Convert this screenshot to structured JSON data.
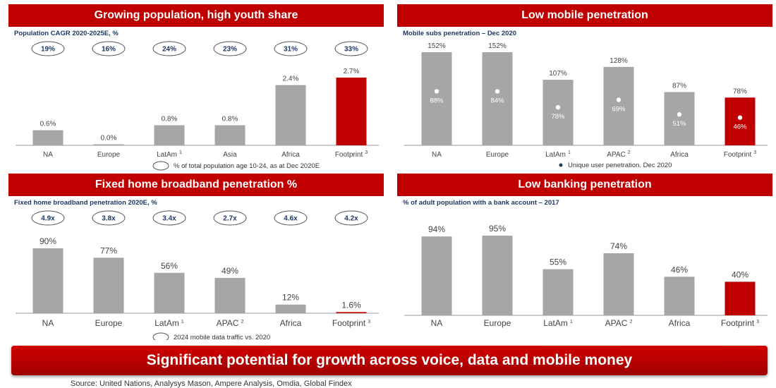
{
  "banner": "Significant potential for growth across voice, data and mobile money",
  "source": "Source: United Nations, Analysys Mason, Ampere Analysis, Omdia, Global Findex",
  "colors": {
    "title_bg": "#c00000",
    "bar_gray": "#a6a6a6",
    "bar_highlight": "#c00000",
    "subtitle": "#1f3864"
  },
  "panels": {
    "population": {
      "title": "Growing population, high youth share",
      "subtitle": "Population CAGR 2020-2025E, %",
      "legend": "% of total population age 10-24, as at Dec 2020E"
    },
    "mobile": {
      "title": "Low mobile penetration",
      "subtitle": "Mobile subs penetration – Dec 2020",
      "legend": "Unique user penetration. Dec 2020"
    },
    "broadband": {
      "title": "Fixed home broadband penetration %",
      "subtitle": "Fixed home broadband penetration 2020E, %",
      "legend": "2024 mobile data traffic vs. 2020"
    },
    "banking": {
      "title": "Low banking penetration",
      "subtitle": "% of adult population with a bank account – 2017"
    }
  },
  "chart_data": [
    {
      "id": "population",
      "type": "bar",
      "categories": [
        "NA",
        "Europe",
        "LatAm",
        "Asia",
        "Africa",
        "Footprint"
      ],
      "superscripts": [
        "",
        "",
        "1",
        "",
        "",
        "3"
      ],
      "values": [
        0.6,
        0.0,
        0.8,
        0.8,
        2.4,
        2.7
      ],
      "value_labels": [
        "0.6%",
        "0.0%",
        "0.8%",
        "0.8%",
        "2.4%",
        "2.7%"
      ],
      "ellipse_labels": [
        "19%",
        "16%",
        "24%",
        "23%",
        "31%",
        "33%"
      ],
      "ymax": 3.0,
      "highlight_index": 5
    },
    {
      "id": "mobile",
      "type": "bar",
      "categories": [
        "NA",
        "Europe",
        "LatAm",
        "APAC",
        "Africa",
        "Footprint"
      ],
      "superscripts": [
        "",
        "",
        "1",
        "2",
        "",
        "3"
      ],
      "values": [
        152,
        152,
        107,
        128,
        87,
        78
      ],
      "value_labels": [
        "152%",
        "152%",
        "107%",
        "128%",
        "87%",
        "78%"
      ],
      "dot_labels": [
        "88%",
        "84%",
        "78%",
        "69%",
        "51%",
        "46%"
      ],
      "ymax": 160,
      "highlight_index": 5
    },
    {
      "id": "broadband",
      "type": "bar",
      "categories": [
        "NA",
        "Europe",
        "LatAm",
        "APAC",
        "Africa",
        "Footprint"
      ],
      "superscripts": [
        "",
        "",
        "1",
        "2",
        "",
        "3"
      ],
      "values": [
        90,
        77,
        56,
        49,
        12,
        1.6
      ],
      "value_labels": [
        "90%",
        "77%",
        "56%",
        "49%",
        "12%",
        "1.6%"
      ],
      "ellipse_labels": [
        "4.9x",
        "3.8x",
        "3.4x",
        "2.7x",
        "4.6x",
        "4.2x"
      ],
      "ymax": 100,
      "highlight_index": 5
    },
    {
      "id": "banking",
      "type": "bar",
      "categories": [
        "NA",
        "Europe",
        "LatAm",
        "APAC",
        "Africa",
        "Footprint"
      ],
      "superscripts": [
        "",
        "",
        "1",
        "2",
        "",
        "3"
      ],
      "values": [
        94,
        95,
        55,
        74,
        46,
        40
      ],
      "value_labels": [
        "94%",
        "95%",
        "55%",
        "74%",
        "46%",
        "40%"
      ],
      "ymax": 100,
      "highlight_index": 5
    }
  ]
}
